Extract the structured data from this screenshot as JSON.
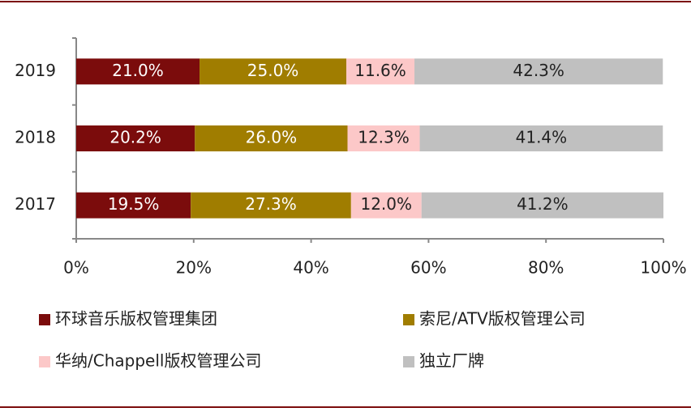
{
  "chart_data": {
    "type": "stacked-bar-horizontal",
    "categories": [
      "2019",
      "2018",
      "2017"
    ],
    "series": [
      {
        "name": "环球音乐版权管理集团",
        "color": "#7b0c0c",
        "values": [
          21.0,
          20.2,
          19.5
        ],
        "value_labels": [
          "21.0%",
          "20.2%",
          "19.5%"
        ]
      },
      {
        "name": "索尼/ATV版权管理公司",
        "color": "#a07d00",
        "values": [
          25.0,
          26.0,
          27.3
        ],
        "value_labels": [
          "25.0%",
          "26.0%",
          "27.3%"
        ]
      },
      {
        "name": "华纳/Chappell版权管理公司",
        "color": "#fcc8c8",
        "values": [
          11.6,
          12.3,
          12.0
        ],
        "value_labels": [
          "11.6%",
          "12.3%",
          "12.0%"
        ]
      },
      {
        "name": "独立厂牌",
        "color": "#c0c0c0",
        "values": [
          42.3,
          41.4,
          41.2
        ],
        "value_labels": [
          "42.3%",
          "41.4%",
          "41.2%"
        ]
      }
    ],
    "xlim": [
      0,
      100
    ],
    "xticks": [
      {
        "value": 0,
        "label": "0%"
      },
      {
        "value": 20,
        "label": "20%"
      },
      {
        "value": 40,
        "label": "40%"
      },
      {
        "value": 60,
        "label": "60%"
      },
      {
        "value": 80,
        "label": "80%"
      },
      {
        "value": 100,
        "label": "100%"
      }
    ],
    "legend": "bottom"
  }
}
